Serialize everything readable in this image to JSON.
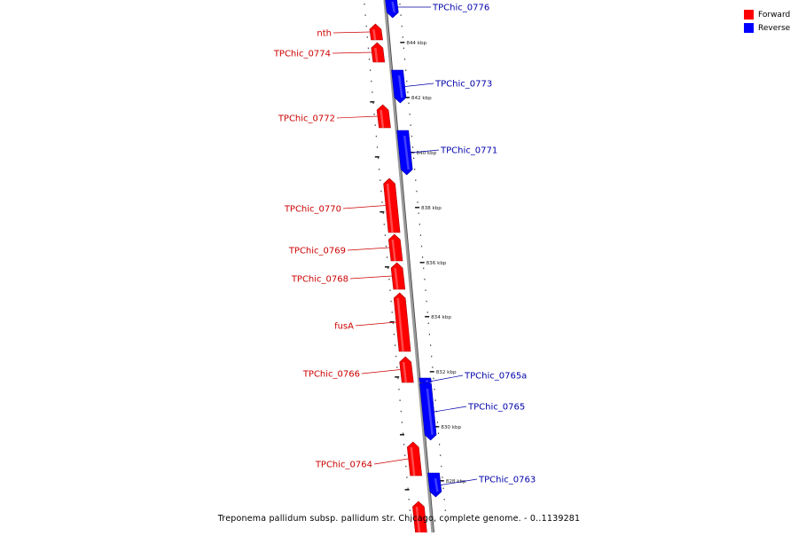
{
  "caption": "Treponema pallidum subsp. pallidum str. Chicago, complete genome. - 0..1139281",
  "legend": [
    {
      "label": "Forward",
      "color": "#ff0000"
    },
    {
      "label": "Reverse",
      "color": "#0000ff"
    }
  ],
  "colors": {
    "forward": "#ff0000",
    "reverse": "#0000ff",
    "forward_label": "#cc0000",
    "reverse_label": "#0000aa",
    "axis": "#888888"
  },
  "kbp_ticks": [
    "844 kbp",
    "842 kbp",
    "840 kbp",
    "838 kbp",
    "836 kbp",
    "834 kbp",
    "832 kbp",
    "830 kbp",
    "828 kbp"
  ],
  "genes": [
    {
      "name": "TPChic_0776",
      "strand": "reverse"
    },
    {
      "name": "nth",
      "strand": "forward"
    },
    {
      "name": "TPChic_0774",
      "strand": "forward"
    },
    {
      "name": "TPChic_0773",
      "strand": "reverse"
    },
    {
      "name": "TPChic_0772",
      "strand": "forward"
    },
    {
      "name": "TPChic_0771",
      "strand": "reverse"
    },
    {
      "name": "TPChic_0770",
      "strand": "forward"
    },
    {
      "name": "TPChic_0769",
      "strand": "forward"
    },
    {
      "name": "TPChic_0768",
      "strand": "forward"
    },
    {
      "name": "fusA",
      "strand": "forward"
    },
    {
      "name": "TPChic_0766",
      "strand": "forward"
    },
    {
      "name": "TPChic_0765a",
      "strand": "reverse"
    },
    {
      "name": "TPChic_0765",
      "strand": "reverse"
    },
    {
      "name": "TPChic_0764",
      "strand": "forward"
    },
    {
      "name": "TPChic_0763",
      "strand": "reverse"
    },
    {
      "name": "",
      "strand": "forward"
    }
  ]
}
